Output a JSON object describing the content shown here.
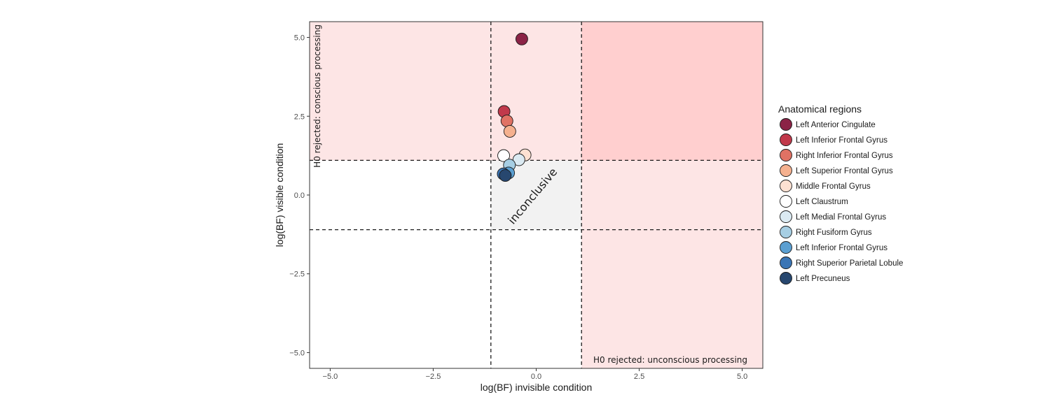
{
  "chart_data": {
    "type": "scatter",
    "xlabel": "log(BF) invisible condition",
    "ylabel": "log(BF) visible condition",
    "xlim": [
      -5.5,
      5.5
    ],
    "ylim": [
      -5.5,
      5.5
    ],
    "xticks": [
      -5.0,
      -2.5,
      0.0,
      2.5,
      5.0
    ],
    "xtick_labels": [
      "−5.0",
      "−2.5",
      "0.0",
      "2.5",
      "5.0"
    ],
    "yticks": [
      -5.0,
      -2.5,
      0.0,
      2.5,
      5.0
    ],
    "ytick_labels": [
      "−5.0",
      "−2.5",
      "0.0",
      "2.5",
      "5.0"
    ],
    "grid": false,
    "thresholds": {
      "x": [
        -1.1,
        1.1
      ],
      "y": [
        -1.1,
        1.1
      ]
    },
    "annotations": {
      "conscious": "H0 rejected: conscious processing",
      "unconscious": "H0 rejected: unconscious processing",
      "inconclusive": "inconclusive"
    },
    "legend": {
      "title": "Anatomical regions",
      "position": "right"
    },
    "series": [
      {
        "name": "Left Anterior Cingulate",
        "color": "#8b2346",
        "x": [
          -0.35
        ],
        "y": [
          4.95
        ]
      },
      {
        "name": "Left Inferior Frontal Gyrus",
        "color": "#c1394b",
        "x": [
          -0.78
        ],
        "y": [
          2.65
        ]
      },
      {
        "name": "Right Inferior Frontal Gyrus",
        "color": "#e07264",
        "x": [
          -0.71
        ],
        "y": [
          2.35
        ]
      },
      {
        "name": "Left Superior Frontal Gyrus",
        "color": "#f5b18f",
        "x": [
          -0.64
        ],
        "y": [
          2.02
        ]
      },
      {
        "name": "Middle Frontal Gyrus",
        "color": "#fde1d2",
        "x": [
          -0.27
        ],
        "y": [
          1.27
        ]
      },
      {
        "name": "Left Claustrum",
        "color": "#ffffff",
        "x": [
          -0.79
        ],
        "y": [
          1.25
        ]
      },
      {
        "name": "Left Medial Frontal Gyrus",
        "color": "#dbeaf2",
        "x": [
          -0.42
        ],
        "y": [
          1.12
        ]
      },
      {
        "name": "Right Fusiform Gyrus",
        "color": "#a6cee3",
        "x": [
          -0.65
        ],
        "y": [
          0.95
        ]
      },
      {
        "name": "Left Inferior Frontal Gyrus",
        "color": "#5b9fd1",
        "x": [
          -0.67
        ],
        "y": [
          0.7
        ]
      },
      {
        "name": "Right Superior Parietal Lobule",
        "color": "#3a75b5",
        "x": [
          -0.8
        ],
        "y": [
          0.67
        ]
      },
      {
        "name": "Left Precuneus",
        "color": "#27476f",
        "x": [
          -0.75
        ],
        "y": [
          0.62
        ]
      }
    ]
  }
}
